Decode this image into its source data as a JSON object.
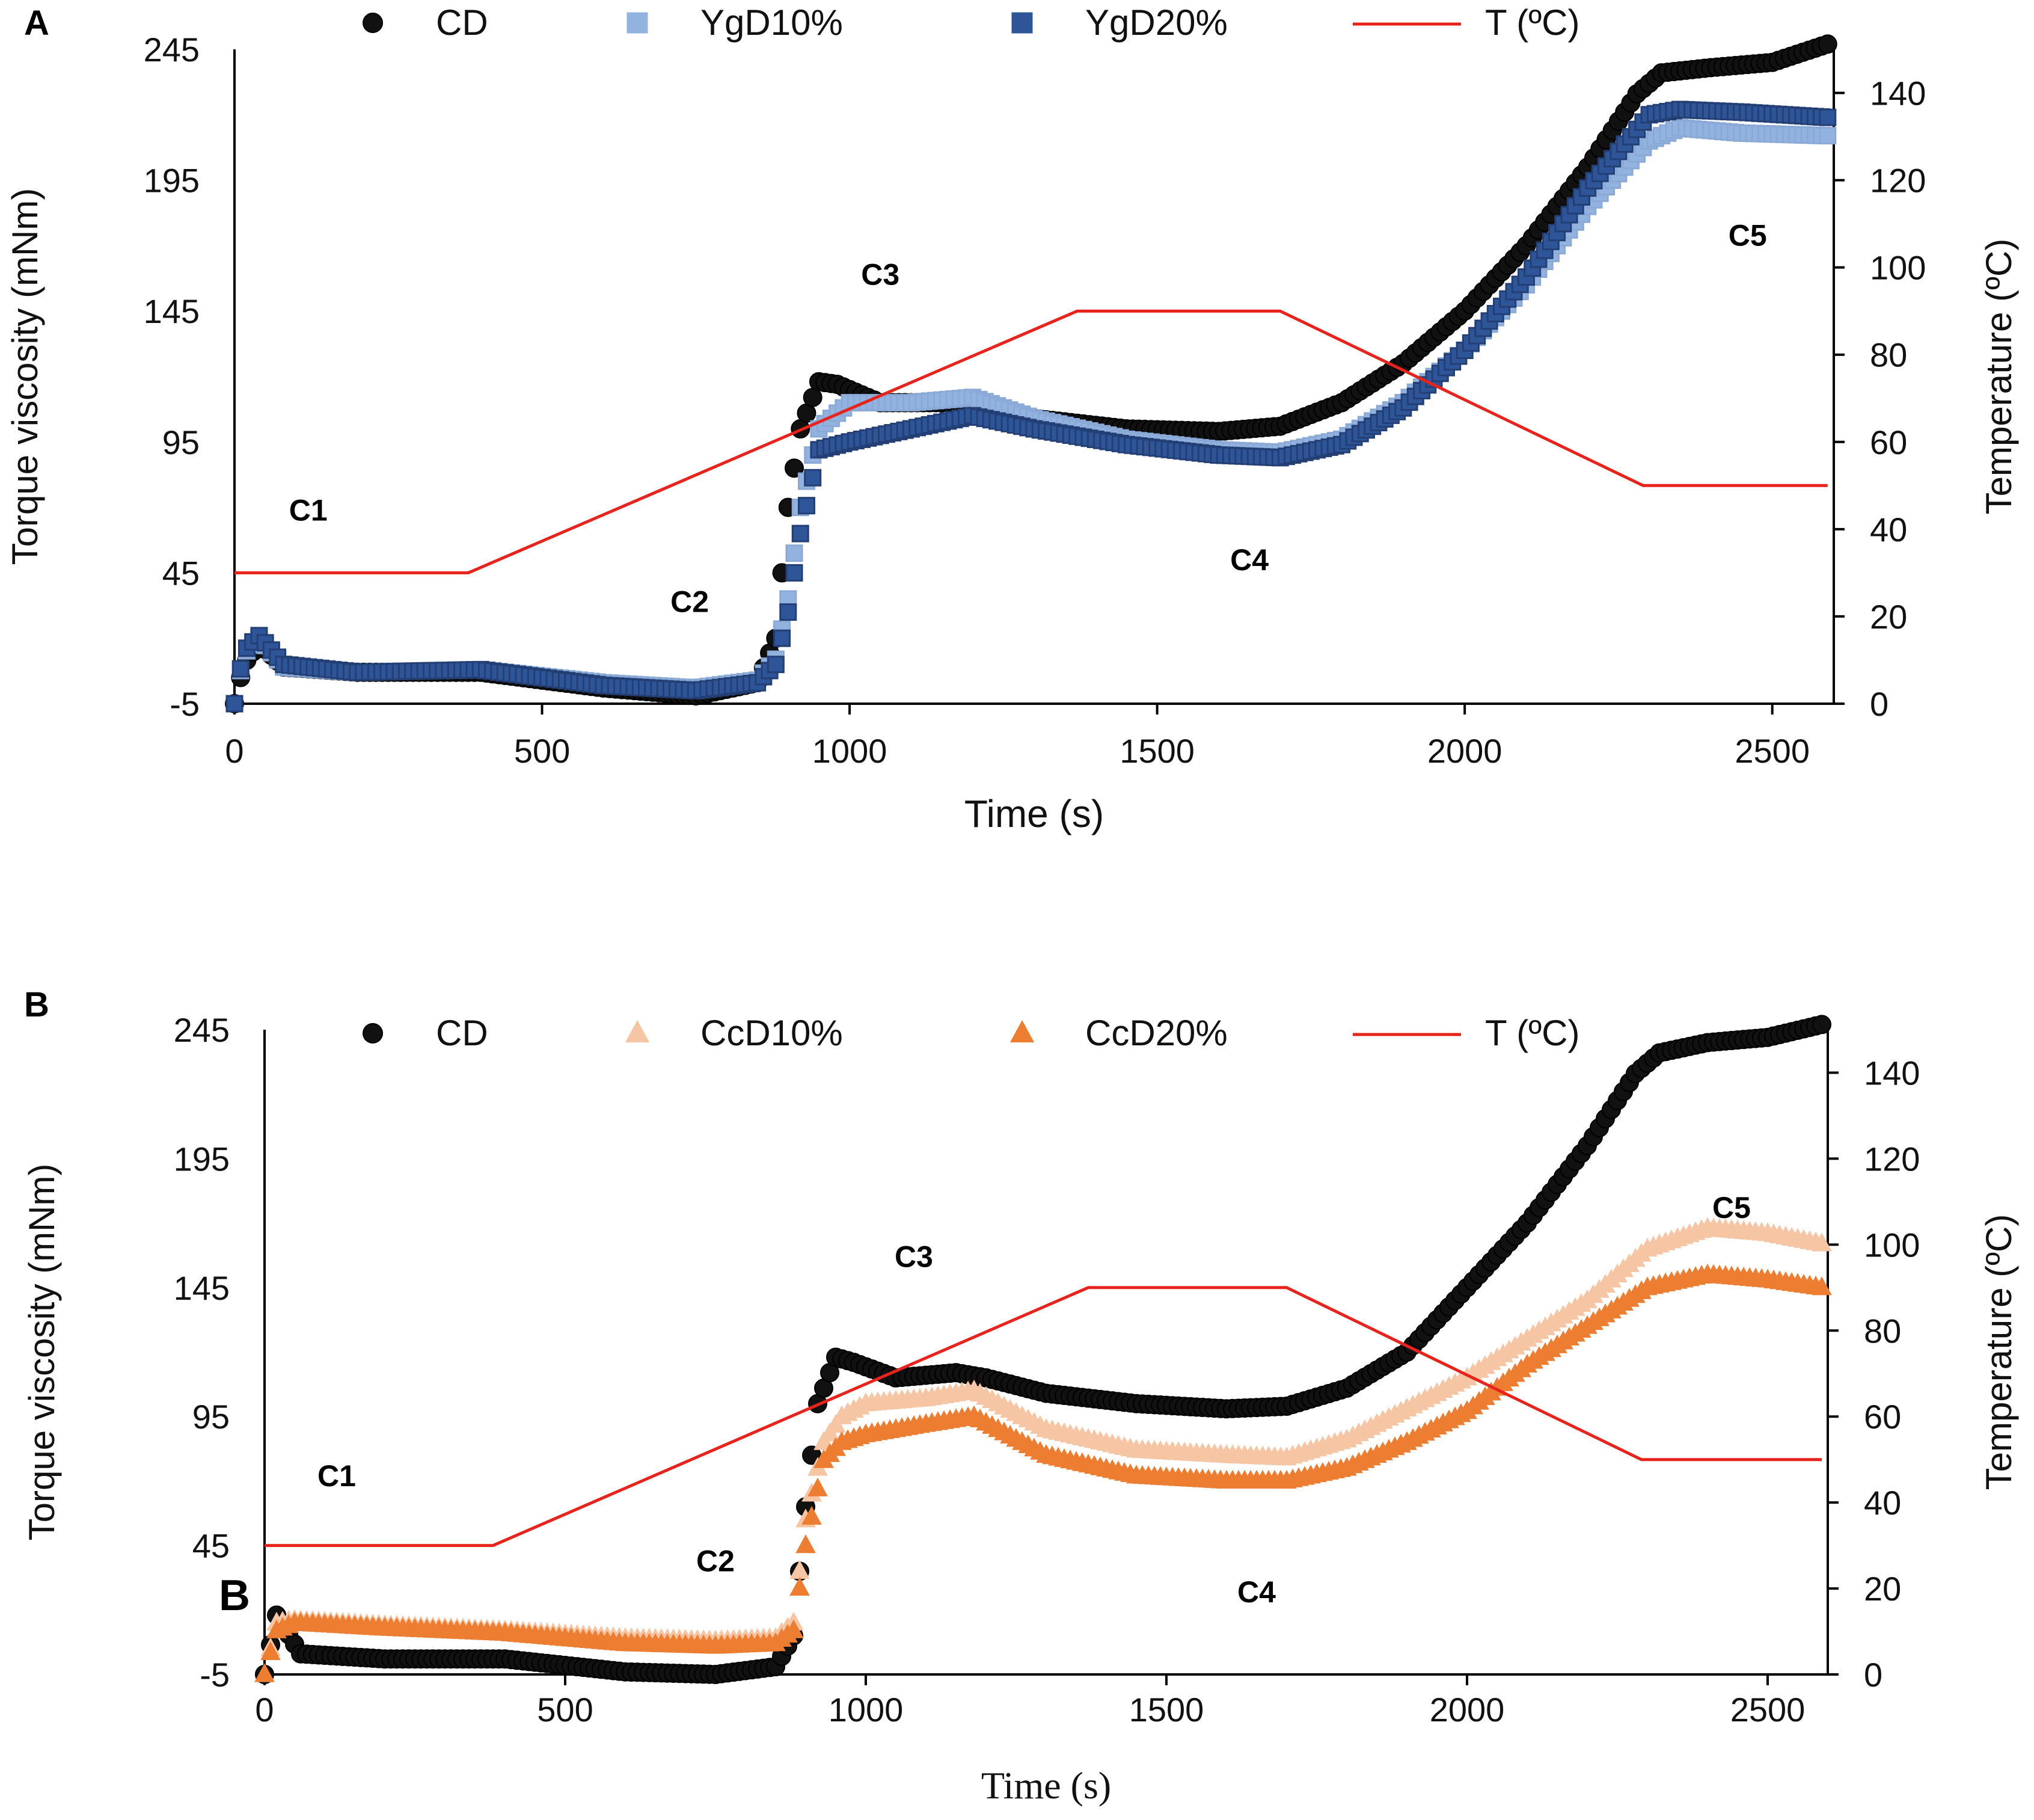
{
  "figure_title": "",
  "colors": {
    "CD": "#111111",
    "YgD10": "#92b3e0",
    "YgD20": "#2e5597",
    "CcD10": "#f6c5a3",
    "CcD20": "#ec7d31",
    "temperature": "#e8231c",
    "axis": "#000000"
  },
  "chart_data": [
    {
      "type": "line",
      "panel_label": "A",
      "title": "",
      "xlabel": "Time (s)",
      "ylabel": "Torque viscosity (mNm)",
      "y2label": "Temperature (ºC)",
      "xlim": [
        0,
        2600
      ],
      "ylim": [
        -5,
        245
      ],
      "y2lim": [
        0,
        150
      ],
      "xticks": [
        "0",
        "500",
        "1000",
        "1500",
        "2000",
        "2500"
      ],
      "yticks": [
        "-5",
        "45",
        "95",
        "145",
        "195",
        "245"
      ],
      "y2ticks": [
        "0",
        "20",
        "40",
        "60",
        "80",
        "100",
        "120",
        "140"
      ],
      "grid": false,
      "legend": {
        "placement": "top",
        "entries": [
          "CD",
          "YgD10%",
          "YgD20%",
          "T (ºC)"
        ]
      },
      "annotations": [
        {
          "text": "C1",
          "x": 120,
          "y": 65
        },
        {
          "text": "C2",
          "x": 740,
          "y": 30
        },
        {
          "text": "C3",
          "x": 1050,
          "y": 155
        },
        {
          "text": "C4",
          "x": 1650,
          "y": 46
        },
        {
          "text": "C5",
          "x": 2460,
          "y": 170
        }
      ],
      "series": [
        {
          "name": "CD",
          "marker": "circle",
          "color": "#111111",
          "x": [
            0,
            15,
            40,
            80,
            200,
            400,
            600,
            750,
            850,
            880,
            900,
            920,
            950,
            980,
            1050,
            1150,
            1200,
            1300,
            1450,
            1600,
            1700,
            1800,
            1900,
            2000,
            2100,
            2200,
            2280,
            2320,
            2400,
            2500,
            2590
          ],
          "y": [
            -5,
            10,
            18,
            9,
            7,
            7,
            1,
            -2,
            3,
            20,
            70,
            100,
            118,
            117,
            110,
            110,
            110,
            104,
            100,
            99,
            101,
            110,
            125,
            145,
            170,
            200,
            228,
            236,
            238,
            240,
            247
          ]
        },
        {
          "name": "YgD10%",
          "marker": "square",
          "color": "#92b3e0",
          "x": [
            0,
            15,
            40,
            80,
            200,
            400,
            600,
            750,
            850,
            880,
            900,
            920,
            950,
            1000,
            1100,
            1200,
            1300,
            1450,
            1600,
            1700,
            1800,
            1900,
            2000,
            2100,
            2200,
            2300,
            2350,
            2450,
            2590
          ],
          "y": [
            -5,
            14,
            20,
            9,
            7,
            8,
            3,
            1,
            4,
            12,
            35,
            70,
            100,
            110,
            110,
            112,
            104,
            96,
            92,
            91,
            96,
            110,
            130,
            155,
            185,
            210,
            215,
            213,
            212
          ]
        },
        {
          "name": "YgD20%",
          "marker": "square",
          "color": "#2e5597",
          "x": [
            0,
            15,
            40,
            80,
            200,
            400,
            600,
            750,
            850,
            880,
            900,
            920,
            950,
            1000,
            1100,
            1200,
            1300,
            1450,
            1600,
            1700,
            1800,
            1900,
            2000,
            2100,
            2200,
            2300,
            2350,
            2450,
            2590
          ],
          "y": [
            -5,
            15,
            21,
            10,
            7,
            8,
            2,
            0,
            3,
            10,
            30,
            60,
            92,
            95,
            100,
            105,
            100,
            94,
            90,
            89,
            94,
            108,
            130,
            158,
            192,
            220,
            222,
            221,
            219
          ]
        },
        {
          "name": "T (ºC)",
          "axis": "right",
          "marker": "none",
          "color": "#e8231c",
          "x": [
            0,
            380,
            1370,
            1700,
            2290,
            2590
          ],
          "y": [
            30,
            30,
            90,
            90,
            50,
            50
          ]
        }
      ]
    },
    {
      "type": "line",
      "panel_label": "B",
      "title": "",
      "xlabel": "Time (s)",
      "ylabel": "Torque viscosity (mNm)",
      "y2label": "Temperature (ºC)",
      "xlim": [
        0,
        2600
      ],
      "ylim": [
        -5,
        245
      ],
      "y2lim": [
        0,
        150
      ],
      "xticks": [
        "0",
        "500",
        "1000",
        "1500",
        "2000",
        "2500"
      ],
      "yticks": [
        "-5",
        "45",
        "95",
        "145",
        "195",
        "245"
      ],
      "y2ticks": [
        "0",
        "20",
        "40",
        "60",
        "80",
        "100",
        "120",
        "140"
      ],
      "grid": false,
      "legend": {
        "placement": "top",
        "entries": [
          "CD",
          "CcD10%",
          "CcD20%",
          "T (ºC)"
        ]
      },
      "annotations": [
        {
          "text": "C1",
          "x": 120,
          "y": 68
        },
        {
          "text": "C2",
          "x": 750,
          "y": 35
        },
        {
          "text": "C3",
          "x": 1080,
          "y": 153
        },
        {
          "text": "C4",
          "x": 1650,
          "y": 23
        },
        {
          "text": "C5",
          "x": 2440,
          "y": 172
        },
        {
          "text": "B",
          "x": -50,
          "y": 20
        }
      ],
      "series": [
        {
          "name": "CD",
          "marker": "circle",
          "color": "#111111",
          "x": [
            0,
            20,
            60,
            200,
            400,
            600,
            750,
            850,
            880,
            900,
            920,
            950,
            980,
            1050,
            1150,
            1200,
            1300,
            1450,
            1600,
            1700,
            1800,
            1900,
            2000,
            2100,
            2200,
            2280,
            2320,
            2400,
            2500,
            2590
          ],
          "y": [
            -5,
            18,
            3,
            1,
            1,
            -4,
            -5,
            -2,
            10,
            60,
            100,
            118,
            116,
            110,
            112,
            110,
            104,
            100,
            98,
            99,
            106,
            120,
            145,
            170,
            200,
            228,
            236,
            240,
            242,
            247
          ]
        },
        {
          "name": "CcD10%",
          "marker": "triangle",
          "color": "#f6c5a3",
          "x": [
            0,
            20,
            50,
            200,
            400,
            600,
            750,
            850,
            880,
            900,
            930,
            960,
            1000,
            1100,
            1180,
            1300,
            1450,
            1600,
            1700,
            1800,
            1900,
            2000,
            2100,
            2200,
            2300,
            2400,
            2500,
            2590
          ],
          "y": [
            -5,
            15,
            16,
            14,
            12,
            9,
            8,
            9,
            15,
            55,
            85,
            95,
            100,
            102,
            105,
            90,
            82,
            80,
            79,
            86,
            98,
            110,
            125,
            140,
            160,
            168,
            166,
            162
          ]
        },
        {
          "name": "CcD20%",
          "marker": "triangle",
          "color": "#ec7d31",
          "x": [
            0,
            20,
            50,
            200,
            400,
            600,
            750,
            850,
            880,
            900,
            930,
            960,
            1000,
            1100,
            1180,
            1300,
            1450,
            1600,
            1700,
            1800,
            1900,
            2000,
            2100,
            2200,
            2300,
            2400,
            2500,
            2590
          ],
          "y": [
            -5,
            12,
            15,
            13,
            11,
            7,
            6,
            7,
            12,
            45,
            78,
            85,
            88,
            92,
            95,
            80,
            72,
            70,
            70,
            75,
            85,
            97,
            115,
            130,
            145,
            150,
            148,
            145
          ]
        },
        {
          "name": "T (ºC)",
          "axis": "right",
          "marker": "none",
          "color": "#e8231c",
          "x": [
            0,
            380,
            1370,
            1700,
            2290,
            2590
          ],
          "y": [
            30,
            30,
            90,
            90,
            50,
            50
          ]
        }
      ]
    }
  ]
}
